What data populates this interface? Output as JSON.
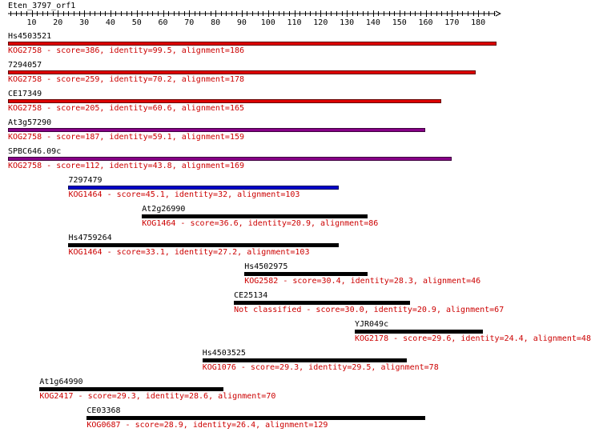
{
  "query": {
    "name": "Eten_3797_orf1",
    "length": 186,
    "ticks": [
      10,
      20,
      30,
      40,
      50,
      60,
      70,
      80,
      90,
      100,
      110,
      120,
      130,
      140,
      150,
      160,
      170,
      180
    ]
  },
  "hits": [
    {
      "name": "Hs4503521",
      "desc": "KOG2758 - score=386, identity=99.5, alignment=186",
      "start": 1,
      "end": 186,
      "color": "#dd0000"
    },
    {
      "name": "7294057",
      "desc": "KOG2758 - score=259, identity=70.2, alignment=178",
      "start": 1,
      "end": 178,
      "color": "#dd0000"
    },
    {
      "name": "CE17349",
      "desc": "KOG2758 - score=205, identity=60.6, alignment=165",
      "start": 1,
      "end": 165,
      "color": "#dd0000"
    },
    {
      "name": "At3g57290",
      "desc": "KOG2758 - score=187, identity=59.1, alignment=159",
      "start": 1,
      "end": 159,
      "color": "#880088"
    },
    {
      "name": "SPBC646.09c",
      "desc": "KOG2758 - score=112, identity=43.8, alignment=169",
      "start": 1,
      "end": 169,
      "color": "#880088"
    },
    {
      "name": "7297479",
      "desc": "KOG1464 - score=45.1, identity=32, alignment=103",
      "start": 24,
      "end": 126,
      "color": "#0000cc"
    },
    {
      "name": "At2g26990",
      "desc": "KOG1464 - score=36.6, identity=20.9, alignment=86",
      "start": 52,
      "end": 137,
      "color": "#000000"
    },
    {
      "name": "Hs4759264",
      "desc": "KOG1464 - score=33.1, identity=27.2, alignment=103",
      "start": 24,
      "end": 126,
      "color": "#000000"
    },
    {
      "name": "Hs4502975",
      "desc": "KOG2582 - score=30.4, identity=28.3, alignment=46",
      "start": 91,
      "end": 137,
      "color": "#000000"
    },
    {
      "name": "CE25134",
      "desc": "Not classified - score=30.0, identity=20.9, alignment=67",
      "start": 87,
      "end": 153,
      "color": "#000000"
    },
    {
      "name": "YJR049c",
      "desc": "KOG2178 - score=29.6, identity=24.4, alignment=48",
      "start": 133,
      "end": 181,
      "color": "#000000"
    },
    {
      "name": "Hs4503525",
      "desc": "KOG1076 - score=29.3, identity=29.5, alignment=78",
      "start": 75,
      "end": 152,
      "color": "#000000"
    },
    {
      "name": "At1g64990",
      "desc": "KOG2417 - score=29.3, identity=28.6, alignment=70",
      "start": 13,
      "end": 82,
      "color": "#000000"
    },
    {
      "name": "CE03368",
      "desc": "KOG0687 - score=28.9, identity=26.4, alignment=129",
      "start": 31,
      "end": 159,
      "color": "#000000"
    }
  ]
}
